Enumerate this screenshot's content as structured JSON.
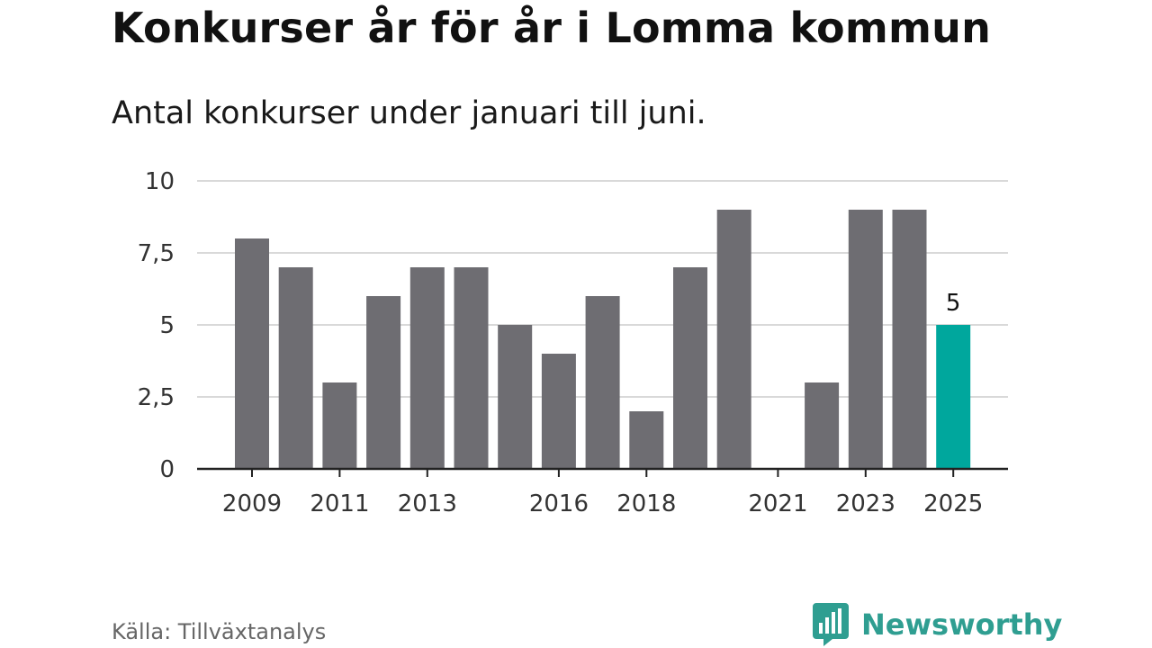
{
  "header": {
    "title": "Konkurser år för år i Lomma kommun",
    "subtitle": "Antal konkurser under januari till juni."
  },
  "footer": {
    "source": "Källa: Tillväxtanalys",
    "brand": "Newsworthy",
    "brand_icon": "newsworthy-logo-icon"
  },
  "colors": {
    "bar": "#6e6d72",
    "highlight": "#00a79d",
    "grid": "#d9d9d9",
    "axis": "#222222",
    "brand": "#2f9e91"
  },
  "chart_data": {
    "type": "bar",
    "categories": [
      "2009",
      "2010",
      "2011",
      "2012",
      "2013",
      "2014",
      "2015",
      "2016",
      "2017",
      "2018",
      "2019",
      "2020",
      "2021",
      "2022",
      "2023",
      "2024",
      "2025"
    ],
    "values": [
      8,
      7,
      3,
      6,
      7,
      7,
      5,
      4,
      6,
      2,
      7,
      9,
      0,
      3,
      9,
      9,
      5
    ],
    "highlight_category": "2025",
    "xtick_labels": [
      "2009",
      "2011",
      "2013",
      "2016",
      "2018",
      "2021",
      "2023",
      "2025"
    ],
    "yticks": [
      0,
      2.5,
      5,
      7.5,
      10
    ],
    "ytick_labels": [
      "0",
      "2,5",
      "5",
      "7,5",
      "10"
    ],
    "ylim": [
      0,
      10
    ],
    "data_labels": [
      {
        "category": "2025",
        "text": "5"
      }
    ],
    "grid": true
  }
}
